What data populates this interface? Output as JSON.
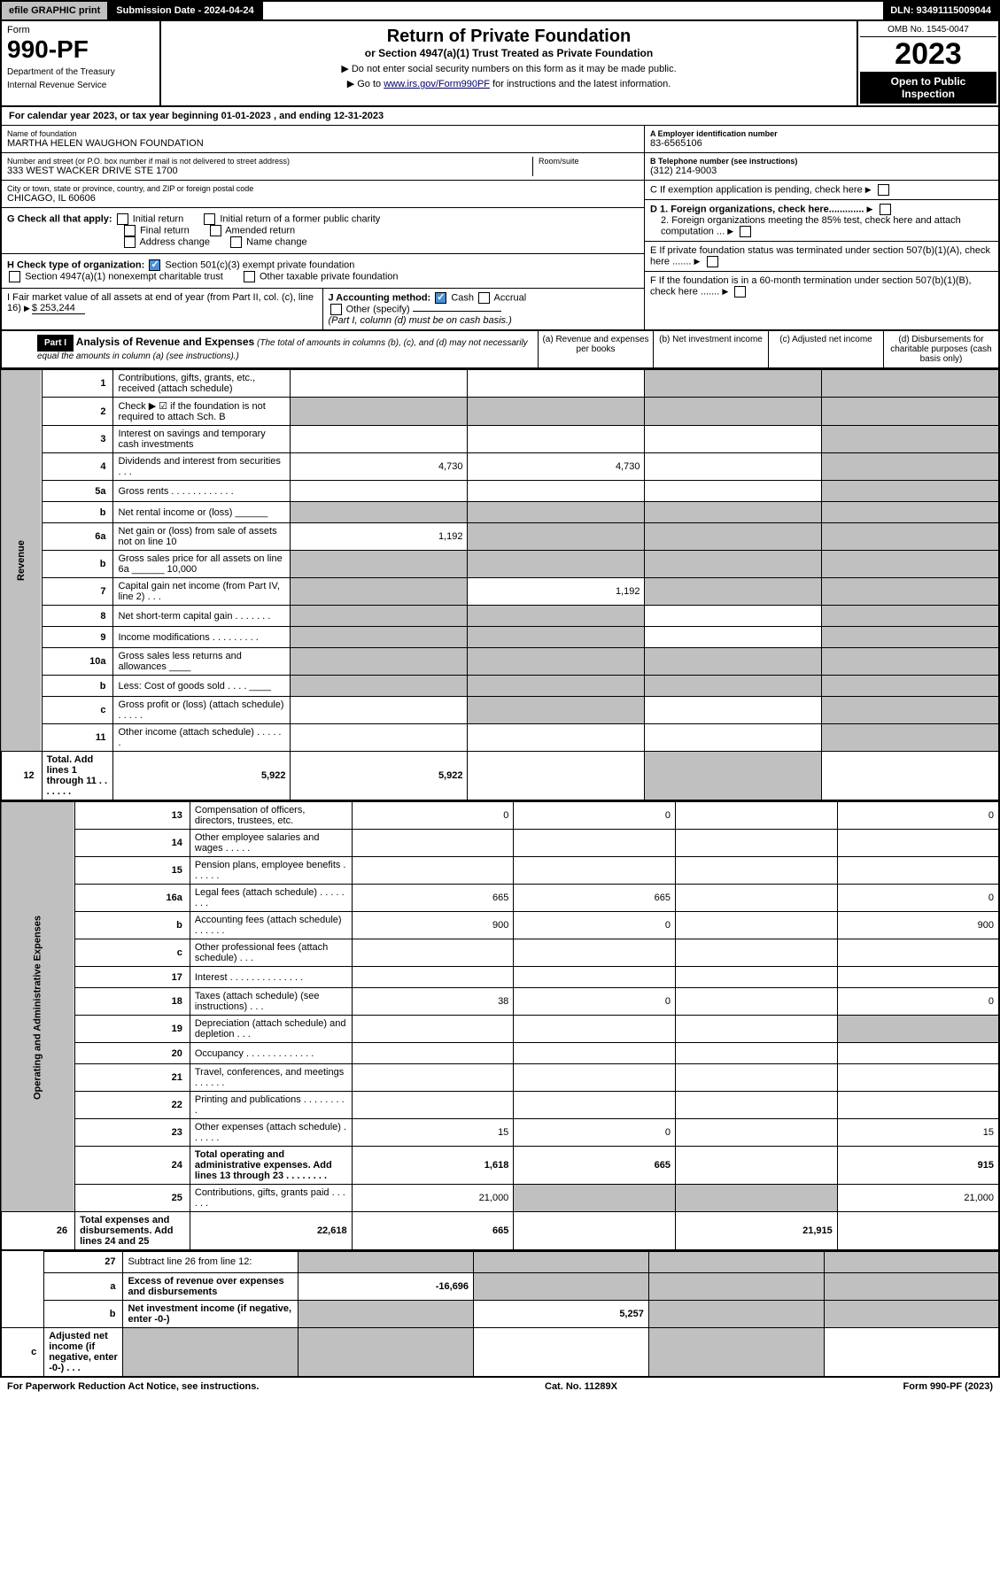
{
  "topbar": {
    "efile": "efile GRAPHIC print",
    "submission": "Submission Date - 2024-04-24",
    "dln": "DLN: 93491115009044"
  },
  "header": {
    "form_label": "Form",
    "form_number": "990-PF",
    "dept1": "Department of the Treasury",
    "dept2": "Internal Revenue Service",
    "title": "Return of Private Foundation",
    "subtitle": "or Section 4947(a)(1) Trust Treated as Private Foundation",
    "note1": "▶ Do not enter social security numbers on this form as it may be made public.",
    "note2_pre": "▶ Go to ",
    "note2_link": "www.irs.gov/Form990PF",
    "note2_post": " for instructions and the latest information.",
    "omb": "OMB No. 1545-0047",
    "year": "2023",
    "open": "Open to Public Inspection"
  },
  "calyear": "For calendar year 2023, or tax year beginning 01-01-2023                              , and ending 12-31-2023",
  "info": {
    "name_lbl": "Name of foundation",
    "name": "MARTHA HELEN WAUGHON FOUNDATION",
    "addr_lbl": "Number and street (or P.O. box number if mail is not delivered to street address)",
    "addr": "333 WEST WACKER DRIVE STE 1700",
    "room_lbl": "Room/suite",
    "city_lbl": "City or town, state or province, country, and ZIP or foreign postal code",
    "city": "CHICAGO, IL  60606",
    "ein_lbl": "A Employer identification number",
    "ein": "83-6565106",
    "tel_lbl": "B Telephone number (see instructions)",
    "tel": "(312) 214-9003",
    "c_lbl": "C If exemption application is pending, check here",
    "d1": "D 1. Foreign organizations, check here.............",
    "d2": "2. Foreign organizations meeting the 85% test, check here and attach computation ...",
    "e_lbl": "E If private foundation status was terminated under section 507(b)(1)(A), check here .......",
    "f_lbl": "F If the foundation is in a 60-month termination under section 507(b)(1)(B), check here ......."
  },
  "g": {
    "label": "G Check all that apply:",
    "initial": "Initial return",
    "initial_former": "Initial return of a former public charity",
    "final": "Final return",
    "amended": "Amended return",
    "addrchg": "Address change",
    "namechg": "Name change"
  },
  "h": {
    "label": "H Check type of organization:",
    "s501": "Section 501(c)(3) exempt private foundation",
    "s4947": "Section 4947(a)(1) nonexempt charitable trust",
    "other": "Other taxable private foundation"
  },
  "i": {
    "label": "I Fair market value of all assets at end of year (from Part II, col. (c), line 16)",
    "value": "$  253,244"
  },
  "j": {
    "label": "J Accounting method:",
    "cash": "Cash",
    "accrual": "Accrual",
    "other": "Other (specify)",
    "note": "(Part I, column (d) must be on cash basis.)"
  },
  "part1": {
    "hdr": "Part I",
    "title": "Analysis of Revenue and Expenses",
    "title_note": "(The total of amounts in columns (b), (c), and (d) may not necessarily equal the amounts in column (a) (see instructions).)",
    "col_a": "(a) Revenue and expenses per books",
    "col_b": "(b) Net investment income",
    "col_c": "(c) Adjusted net income",
    "col_d": "(d) Disbursements for charitable purposes (cash basis only)"
  },
  "vert": {
    "revenue": "Revenue",
    "expenses": "Operating and Administrative Expenses"
  },
  "rows": [
    {
      "n": "1",
      "d": "Contributions, gifts, grants, etc., received (attach schedule)",
      "a": "",
      "b": "",
      "c": "s",
      "dd": "s"
    },
    {
      "n": "2",
      "d": "Check ▶ ☑ if the foundation is not required to attach Sch. B",
      "a": "s",
      "b": "s",
      "c": "s",
      "dd": "s"
    },
    {
      "n": "3",
      "d": "Interest on savings and temporary cash investments",
      "a": "",
      "b": "",
      "c": "",
      "dd": "s"
    },
    {
      "n": "4",
      "d": "Dividends and interest from securities   .   .   .",
      "a": "4,730",
      "b": "4,730",
      "c": "",
      "dd": "s"
    },
    {
      "n": "5a",
      "d": "Gross rents   .   .   .   .   .   .   .   .   .   .   .   .",
      "a": "",
      "b": "",
      "c": "",
      "dd": "s"
    },
    {
      "n": "b",
      "d": "Net rental income or (loss)  ______",
      "a": "s",
      "b": "s",
      "c": "s",
      "dd": "s"
    },
    {
      "n": "6a",
      "d": "Net gain or (loss) from sale of assets not on line 10",
      "a": "1,192",
      "b": "s",
      "c": "s",
      "dd": "s"
    },
    {
      "n": "b",
      "d": "Gross sales price for all assets on line 6a ______ 10,000",
      "a": "s",
      "b": "s",
      "c": "s",
      "dd": "s"
    },
    {
      "n": "7",
      "d": "Capital gain net income (from Part IV, line 2)   .   .   .",
      "a": "s",
      "b": "1,192",
      "c": "s",
      "dd": "s"
    },
    {
      "n": "8",
      "d": "Net short-term capital gain   .   .   .   .   .   .   .",
      "a": "s",
      "b": "s",
      "c": "",
      "dd": "s"
    },
    {
      "n": "9",
      "d": "Income modifications   .   .   .   .   .   .   .   .   .",
      "a": "s",
      "b": "s",
      "c": "",
      "dd": "s"
    },
    {
      "n": "10a",
      "d": "Gross sales less returns and allowances  ____",
      "a": "s",
      "b": "s",
      "c": "s",
      "dd": "s"
    },
    {
      "n": "b",
      "d": "Less: Cost of goods sold   .   .   .   .  ____",
      "a": "s",
      "b": "s",
      "c": "s",
      "dd": "s"
    },
    {
      "n": "c",
      "d": "Gross profit or (loss) (attach schedule)   .   .   .   .   .",
      "a": "",
      "b": "s",
      "c": "",
      "dd": "s"
    },
    {
      "n": "11",
      "d": "Other income (attach schedule)   .   .   .   .   .   .",
      "a": "",
      "b": "",
      "c": "",
      "dd": "s"
    },
    {
      "n": "12",
      "d": "Total. Add lines 1 through 11   .   .   .   .   .   .   .",
      "a": "5,922",
      "b": "5,922",
      "c": "",
      "dd": "s",
      "bold": true
    }
  ],
  "exp_rows": [
    {
      "n": "13",
      "d": "Compensation of officers, directors, trustees, etc.",
      "a": "0",
      "b": "0",
      "c": "",
      "dd": "0"
    },
    {
      "n": "14",
      "d": "Other employee salaries and wages   .   .   .   .   .",
      "a": "",
      "b": "",
      "c": "",
      "dd": ""
    },
    {
      "n": "15",
      "d": "Pension plans, employee benefits   .   .   .   .   .   .",
      "a": "",
      "b": "",
      "c": "",
      "dd": ""
    },
    {
      "n": "16a",
      "d": "Legal fees (attach schedule)   .   .   .   .   .   .   .   .",
      "a": "665",
      "b": "665",
      "c": "",
      "dd": "0"
    },
    {
      "n": "b",
      "d": "Accounting fees (attach schedule)   .   .   .   .   .   .",
      "a": "900",
      "b": "0",
      "c": "",
      "dd": "900"
    },
    {
      "n": "c",
      "d": "Other professional fees (attach schedule)   .   .   .",
      "a": "",
      "b": "",
      "c": "",
      "dd": ""
    },
    {
      "n": "17",
      "d": "Interest   .   .   .   .   .   .   .   .   .   .   .   .   .   .",
      "a": "",
      "b": "",
      "c": "",
      "dd": ""
    },
    {
      "n": "18",
      "d": "Taxes (attach schedule) (see instructions)   .   .   .",
      "a": "38",
      "b": "0",
      "c": "",
      "dd": "0"
    },
    {
      "n": "19",
      "d": "Depreciation (attach schedule) and depletion   .   .   .",
      "a": "",
      "b": "",
      "c": "",
      "dd": "s"
    },
    {
      "n": "20",
      "d": "Occupancy   .   .   .   .   .   .   .   .   .   .   .   .   .",
      "a": "",
      "b": "",
      "c": "",
      "dd": ""
    },
    {
      "n": "21",
      "d": "Travel, conferences, and meetings   .   .   .   .   .   .",
      "a": "",
      "b": "",
      "c": "",
      "dd": ""
    },
    {
      "n": "22",
      "d": "Printing and publications   .   .   .   .   .   .   .   .   .",
      "a": "",
      "b": "",
      "c": "",
      "dd": ""
    },
    {
      "n": "23",
      "d": "Other expenses (attach schedule)   .   .   .   .   .   .",
      "a": "15",
      "b": "0",
      "c": "",
      "dd": "15"
    },
    {
      "n": "24",
      "d": "Total operating and administrative expenses. Add lines 13 through 23   .   .   .   .   .   .   .   .",
      "a": "1,618",
      "b": "665",
      "c": "",
      "dd": "915",
      "bold": true
    },
    {
      "n": "25",
      "d": "Contributions, gifts, grants paid   .   .   .   .   .   .",
      "a": "21,000",
      "b": "s",
      "c": "s",
      "dd": "21,000"
    },
    {
      "n": "26",
      "d": "Total expenses and disbursements. Add lines 24 and 25",
      "a": "22,618",
      "b": "665",
      "c": "",
      "dd": "21,915",
      "bold": true
    }
  ],
  "bottom_rows": [
    {
      "n": "27",
      "d": "Subtract line 26 from line 12:",
      "a": "s",
      "b": "s",
      "c": "s",
      "dd": "s"
    },
    {
      "n": "a",
      "d": "Excess of revenue over expenses and disbursements",
      "a": "-16,696",
      "b": "s",
      "c": "s",
      "dd": "s",
      "bold": true
    },
    {
      "n": "b",
      "d": "Net investment income (if negative, enter -0-)",
      "a": "s",
      "b": "5,257",
      "c": "s",
      "dd": "s",
      "bold": true
    },
    {
      "n": "c",
      "d": "Adjusted net income (if negative, enter -0-)   .   .   .",
      "a": "s",
      "b": "s",
      "c": "",
      "dd": "s",
      "bold": true
    }
  ],
  "footer": {
    "left": "For Paperwork Reduction Act Notice, see instructions.",
    "center": "Cat. No. 11289X",
    "right": "Form 990-PF (2023)"
  }
}
